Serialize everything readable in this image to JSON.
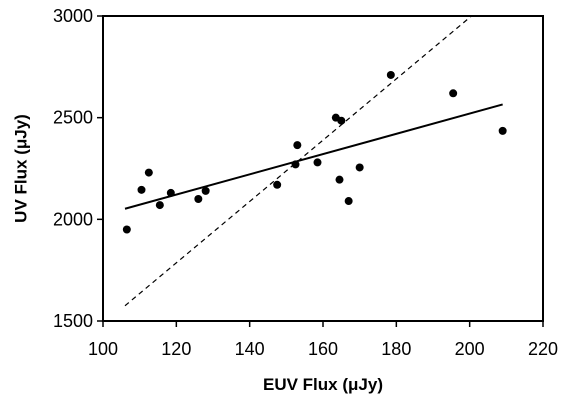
{
  "chart_data": {
    "type": "scatter",
    "title": "",
    "xlabel": "EUV Flux (μJy)",
    "ylabel": "UV Flux (μJy)",
    "xlim": [
      100,
      220
    ],
    "ylim": [
      1500,
      3000
    ],
    "xticks": [
      100,
      120,
      140,
      160,
      180,
      200,
      220
    ],
    "yticks": [
      1500,
      2000,
      2500,
      3000
    ],
    "grid": false,
    "legend": "none",
    "points": [
      {
        "x": 106.5,
        "y": 1950
      },
      {
        "x": 110.5,
        "y": 2145
      },
      {
        "x": 112.5,
        "y": 2230
      },
      {
        "x": 115.5,
        "y": 2070
      },
      {
        "x": 118.5,
        "y": 2130
      },
      {
        "x": 126,
        "y": 2100
      },
      {
        "x": 128,
        "y": 2140
      },
      {
        "x": 147.5,
        "y": 2170
      },
      {
        "x": 152.5,
        "y": 2270
      },
      {
        "x": 153,
        "y": 2365
      },
      {
        "x": 158.5,
        "y": 2280
      },
      {
        "x": 163.5,
        "y": 2500
      },
      {
        "x": 164.5,
        "y": 2195
      },
      {
        "x": 165,
        "y": 2485
      },
      {
        "x": 167,
        "y": 2090
      },
      {
        "x": 170,
        "y": 2255
      },
      {
        "x": 178.5,
        "y": 2710
      },
      {
        "x": 195.5,
        "y": 2620
      },
      {
        "x": 209,
        "y": 2435
      }
    ],
    "lines": [
      {
        "style": "solid",
        "x": [
          106,
          209
        ],
        "y": [
          2052,
          2565
        ]
      },
      {
        "style": "dashed",
        "x": [
          106,
          200.5
        ],
        "y": [
          1575,
          3000
        ]
      }
    ],
    "colors": {
      "points": "#000000",
      "lines": "#000000",
      "axis": "#000000"
    }
  }
}
